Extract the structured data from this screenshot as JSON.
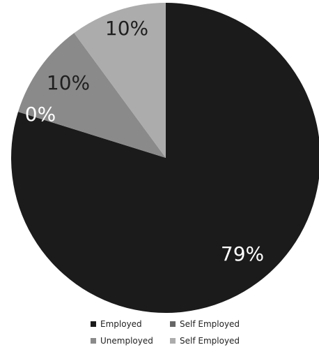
{
  "chart_data": {
    "type": "pie",
    "title": "",
    "start_angle_deg": 0,
    "direction": "clockwise",
    "legend_position": "bottom",
    "slices": [
      {
        "name": "Employed",
        "value": 79,
        "label": "79%",
        "color": "#1b1b1b",
        "label_color": "#ffffff"
      },
      {
        "name": "Self Employed",
        "value": 0,
        "label": "0%",
        "color": "#666666",
        "label_color": "#ffffff"
      },
      {
        "name": "Unemployed",
        "value": 10,
        "label": "10%",
        "color": "#8a8a8a",
        "label_color": "#1f1f1f"
      },
      {
        "name": "Self Employed",
        "value": 10,
        "label": "10%",
        "color": "#acacac",
        "label_color": "#1f1f1f"
      }
    ]
  }
}
